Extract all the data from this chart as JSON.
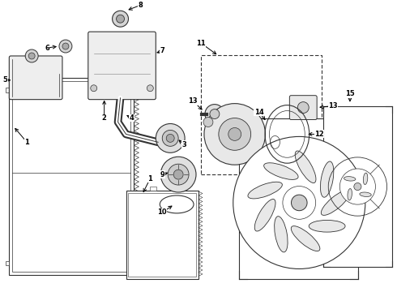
{
  "bg_color": "#ffffff",
  "line_color": "#333333",
  "text_color": "#000000",
  "fig_w": 4.9,
  "fig_h": 3.6,
  "dpi": 100
}
